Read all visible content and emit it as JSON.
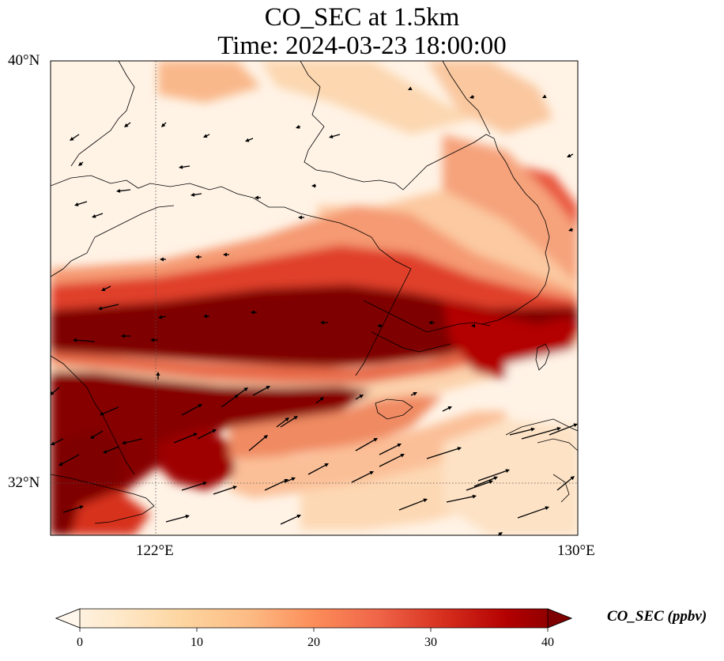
{
  "title": {
    "line1": "CO_SEC at 1.5km",
    "line2": "Time: 2024-03-23 18:00:00"
  },
  "axes": {
    "lat_labels": [
      "40°N",
      "32°N"
    ],
    "lon_labels": [
      "122°E",
      "130°E"
    ]
  },
  "colorbar": {
    "label": "CO_SEC (ppbv)",
    "ticks": [
      "0",
      "10",
      "20",
      "30",
      "40"
    ],
    "min": 0,
    "max": 40,
    "extend": "both",
    "colormap": "OrRd",
    "stops": [
      "#fff7ec",
      "#fee8c8",
      "#fdd49e",
      "#fdbb84",
      "#fc8d59",
      "#ef6548",
      "#d7301f",
      "#b30000",
      "#7f0000"
    ]
  },
  "map": {
    "extent": {
      "lon_min": 120,
      "lon_max": 130,
      "lat_min": 31,
      "lat_max": 40
    },
    "gridlines": {
      "lon": [
        122
      ],
      "lat": [
        32
      ],
      "style": "dotted"
    },
    "wind_vectors": true
  }
}
